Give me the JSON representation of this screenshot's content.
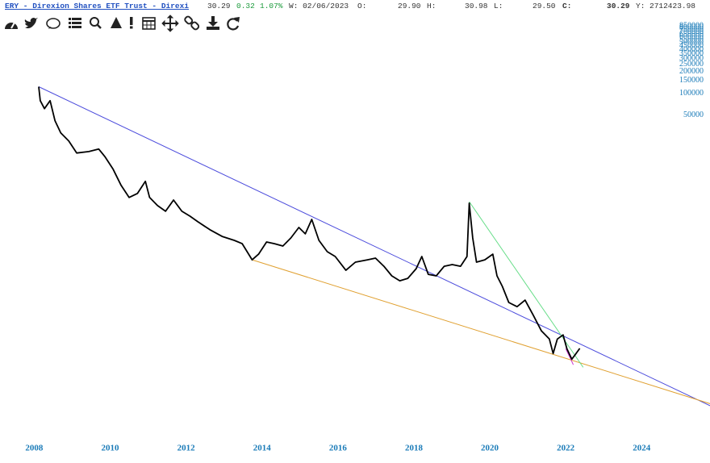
{
  "header": {
    "title": "ERY - Direxion Shares ETF Trust - Direxi",
    "last": "30.29",
    "change": "0.32",
    "change_pct": "1.07%",
    "date": "W: 02/06/2023",
    "o_label": "O:",
    "open": "29.90",
    "h_label": "H:",
    "high": "30.98",
    "l_label": "L:",
    "low": "29.50",
    "c_label": "C:",
    "close": "30.29",
    "y_label": "Y:",
    "y_value": "2712423.98"
  },
  "chart_data": {
    "type": "line",
    "log_scale": true,
    "grid": false,
    "xlim": [
      2007.1,
      2025.8
    ],
    "xticks": [
      2008,
      2010,
      2012,
      2014,
      2016,
      2018,
      2020,
      2022,
      2024
    ],
    "ylim": [
      1.9,
      1100000
    ],
    "yticks": [
      50000,
      100000,
      150000,
      200000,
      250000,
      300000,
      350000,
      400000,
      450000,
      500000,
      550000,
      600000,
      650000,
      700000,
      750000,
      800000,
      850000
    ],
    "x": [
      2008.12,
      2008.16,
      2008.27,
      2008.42,
      2008.55,
      2008.7,
      2008.91,
      2009.12,
      2009.44,
      2009.7,
      2009.87,
      2010.08,
      2010.29,
      2010.5,
      2010.72,
      2010.93,
      2011.04,
      2011.25,
      2011.46,
      2011.67,
      2011.89,
      2012.1,
      2012.31,
      2012.63,
      2012.95,
      2013.27,
      2013.48,
      2013.74,
      2013.91,
      2014.12,
      2014.33,
      2014.55,
      2014.76,
      2014.97,
      2015.14,
      2015.31,
      2015.5,
      2015.72,
      2015.93,
      2016.21,
      2016.46,
      2016.78,
      2016.99,
      2017.21,
      2017.42,
      2017.63,
      2017.84,
      2018.06,
      2018.21,
      2018.38,
      2018.59,
      2018.8,
      2019.01,
      2019.23,
      2019.4,
      2019.46,
      2019.55,
      2019.65,
      2019.87,
      2020.08,
      2020.19,
      2020.33,
      2020.5,
      2020.72,
      2020.93,
      2021.14,
      2021.36,
      2021.57,
      2021.67,
      2021.78,
      2021.93,
      2022.03,
      2022.16,
      2022.24,
      2022.37
    ],
    "series": [
      {
        "color": "#000000",
        "values": [
          123000,
          79000,
          61400,
          79000,
          41700,
          28400,
          22000,
          15000,
          15700,
          17000,
          13200,
          8950,
          5360,
          3650,
          4150,
          6100,
          3650,
          2820,
          2360,
          3370,
          2360,
          2020,
          1690,
          1310,
          1060,
          935,
          843,
          505,
          604,
          889,
          843,
          782,
          1010,
          1410,
          1150,
          1820,
          935,
          653,
          560,
          362,
          468,
          505,
          532,
          411,
          303,
          259,
          280,
          381,
          560,
          318,
          303,
          411,
          434,
          411,
          560,
          3050,
          1010,
          468,
          505,
          604,
          303,
          217,
          130,
          114,
          140,
          88,
          52.7,
          40.8,
          25.7,
          40.8,
          46.5,
          30,
          21.5,
          24.4,
          30.29
        ]
      }
    ],
    "trendlines": [
      {
        "color": "#4b4bdc",
        "x": [
          2008.12,
          2025.82
        ],
        "values": [
          123000,
          4.85
        ]
      },
      {
        "color": "#e0a030",
        "x": [
          2013.74,
          2025.82
        ],
        "values": [
          505,
          5.2
        ]
      },
      {
        "color": "#66dd88",
        "x": [
          2019.46,
          2022.46
        ],
        "values": [
          3200,
          16.6
        ]
      },
      {
        "color": "#cc33cc",
        "x": [
          2022.0,
          2022.2
        ],
        "values": [
          30,
          18
        ]
      }
    ]
  }
}
